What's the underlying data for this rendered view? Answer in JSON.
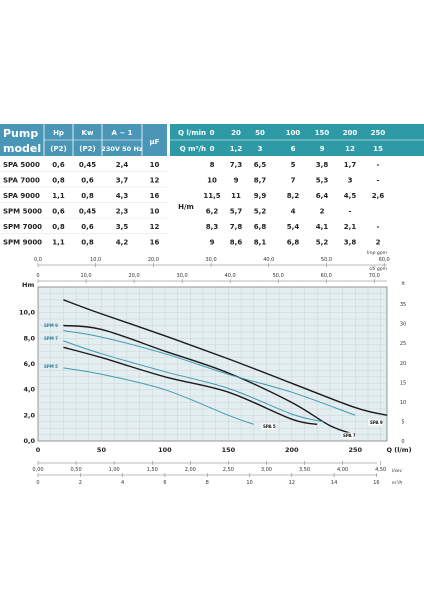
{
  "table": {
    "left_headers": {
      "model": [
        "Pump",
        "model"
      ],
      "hp": [
        "Hp",
        "(P2)"
      ],
      "kw": [
        "Kw",
        "(P2)"
      ],
      "amp": [
        "A ~ 1",
        "230V 50 Hz"
      ],
      "uf": "µF"
    },
    "right_headers": {
      "q_lmin": "Q l/min",
      "q_m3h": "Q m³/h",
      "lmin_values": [
        "0",
        "20",
        "50",
        "100",
        "150",
        "200",
        "250"
      ],
      "m3h_values": [
        "0",
        "1,2",
        "3",
        "6",
        "9",
        "12",
        "15"
      ]
    },
    "hm_label": "H/m",
    "rows": [
      {
        "model": "SPA 5000",
        "hp": "0,6",
        "kw": "0,45",
        "amp": "2,4",
        "uf": "10",
        "h": [
          "8",
          "7,3",
          "6,5",
          "5",
          "3,8",
          "1,7",
          "-"
        ]
      },
      {
        "model": "SPA 7000",
        "hp": "0,8",
        "kw": "0,6",
        "amp": "3,7",
        "uf": "12",
        "h": [
          "10",
          "9",
          "8,7",
          "7",
          "5,3",
          "3",
          "-"
        ]
      },
      {
        "model": "SPA 9000",
        "hp": "1,1",
        "kw": "0,8",
        "amp": "4,3",
        "uf": "16",
        "h": [
          "11,5",
          "11",
          "9,9",
          "8,2",
          "6,4",
          "4,5",
          "2,6"
        ]
      },
      {
        "model": "SPM 5000",
        "hp": "0,6",
        "kw": "0,45",
        "amp": "2,3",
        "uf": "10",
        "h": [
          "6,2",
          "5,7",
          "5,2",
          "4",
          "2",
          "-",
          ""
        ]
      },
      {
        "model": "SPM 7000",
        "hp": "0,8",
        "kw": "0,6",
        "amp": "3,5",
        "uf": "12",
        "h": [
          "8,3",
          "7,8",
          "6,8",
          "5,4",
          "4,1",
          "2,1",
          "-"
        ]
      },
      {
        "model": "SPM 9000",
        "hp": "1,1",
        "kw": "0,8",
        "amp": "4,2",
        "uf": "16",
        "h": [
          "9",
          "8,6",
          "8,1",
          "6,8",
          "5,2",
          "3,8",
          "2"
        ]
      }
    ]
  },
  "chart_data": {
    "type": "line",
    "xlabel": "Q (l/m)",
    "ylabel": "Hm",
    "xlim": [
      0,
      270
    ],
    "ylim": [
      0,
      12
    ],
    "x_ticks": [
      "0",
      "50",
      "100",
      "150",
      "200",
      "250"
    ],
    "y_ticks": [
      "0,0",
      "2,0",
      "4,0",
      "6,0",
      "8,0",
      "10,0"
    ],
    "right_axis": {
      "label": "ft",
      "ticks": [
        "0",
        "5",
        "10",
        "15",
        "20",
        "25",
        "30",
        "35"
      ]
    },
    "top_axis_imp": {
      "label": "Imp gpm",
      "ticks": [
        "0,0",
        "10,0",
        "20,0",
        "30,0",
        "40,0",
        "50,0",
        "60,0"
      ]
    },
    "top_axis_us": {
      "label": "US gpm",
      "ticks": [
        "0",
        "10,0",
        "20,0",
        "30,0",
        "40,0",
        "50,0",
        "60,0",
        "70,0"
      ]
    },
    "bottom_axis_lsec": {
      "label": "l/sec",
      "ticks": [
        "0,00",
        "0,50",
        "1,00",
        "1,50",
        "2,00",
        "2,50",
        "3,00",
        "3,50",
        "4,00",
        "4,50"
      ]
    },
    "bottom_axis_m3h": {
      "label": "m³/h",
      "ticks": [
        "0",
        "2",
        "4",
        "6",
        "8",
        "10",
        "12",
        "14",
        "16"
      ]
    },
    "colors": {
      "spa": "#1a1a1a",
      "spm": "#3d9bb0",
      "grid": "#b9cdd4",
      "plot_bg": "#e4eef1",
      "table_head": "#4a96b6",
      "table_head_right": "#2d9aa5"
    },
    "series": [
      {
        "name": "SPA 9",
        "group": "spa",
        "x": [
          20,
          50,
          100,
          150,
          200,
          250,
          275
        ],
        "y": [
          11.0,
          9.9,
          8.2,
          6.4,
          4.5,
          2.6,
          2.0
        ]
      },
      {
        "name": "SPA 7",
        "group": "spa",
        "x": [
          20,
          50,
          100,
          150,
          200,
          230,
          250
        ],
        "y": [
          9.0,
          8.7,
          7.0,
          5.3,
          3.0,
          1.2,
          0.5
        ]
      },
      {
        "name": "SPA 5",
        "group": "spa",
        "x": [
          20,
          50,
          100,
          150,
          200,
          220
        ],
        "y": [
          7.3,
          6.5,
          5.0,
          3.8,
          1.7,
          1.3
        ]
      },
      {
        "name": "SPM 9",
        "group": "spm",
        "x": [
          20,
          50,
          100,
          150,
          200,
          250
        ],
        "y": [
          8.6,
          8.1,
          6.8,
          5.2,
          3.8,
          2.0
        ]
      },
      {
        "name": "SPM 7",
        "group": "spm",
        "x": [
          20,
          50,
          100,
          150,
          200,
          225
        ],
        "y": [
          7.8,
          6.8,
          5.4,
          4.1,
          2.1,
          1.5
        ]
      },
      {
        "name": "SPM 5",
        "group": "spm",
        "x": [
          20,
          50,
          100,
          150,
          170
        ],
        "y": [
          5.7,
          5.2,
          4.0,
          2.0,
          1.3
        ]
      }
    ]
  }
}
